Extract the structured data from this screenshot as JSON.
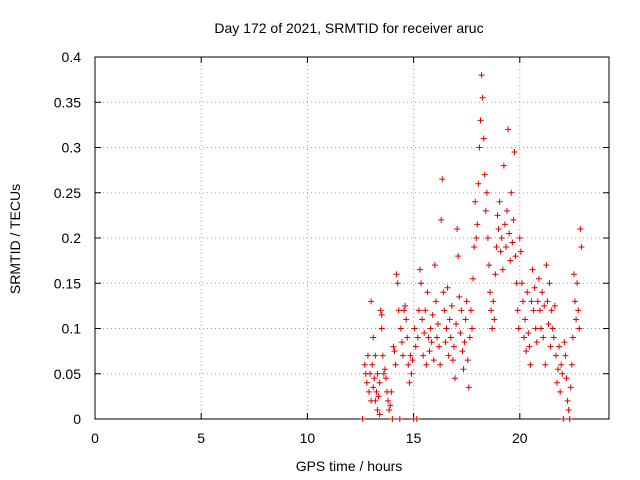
{
  "chart_data": {
    "type": "scatter",
    "title": "Day 172 of 2021, SRMTID for receiver aruc",
    "xlabel": "GPS time / hours",
    "ylabel": "SRMTID / TECUs",
    "xlim": [
      0,
      24.2
    ],
    "ylim": [
      0,
      0.4
    ],
    "x_ticks": [
      "0",
      "5",
      "10",
      "15",
      "20"
    ],
    "x_tick_values": [
      0,
      5,
      10,
      15,
      20
    ],
    "y_ticks": [
      "0",
      "0.05",
      "0.1",
      "0.15",
      "0.2",
      "0.25",
      "0.3",
      "0.35",
      "0.4"
    ],
    "y_tick_values": [
      0,
      0.05,
      0.1,
      0.15,
      0.2,
      0.25,
      0.3,
      0.35,
      0.4
    ],
    "grid": true,
    "marker": "plus",
    "color": "#e00000",
    "series": [
      {
        "name": "SRMTID",
        "points": [
          [
            12.6,
            0.0
          ],
          [
            12.7,
            0.06
          ],
          [
            12.75,
            0.05
          ],
          [
            12.8,
            0.04
          ],
          [
            12.85,
            0.07
          ],
          [
            12.9,
            0.03
          ],
          [
            12.95,
            0.05
          ],
          [
            13.0,
            0.13
          ],
          [
            13.0,
            0.02
          ],
          [
            13.05,
            0.06
          ],
          [
            13.1,
            0.09
          ],
          [
            13.1,
            0.035
          ],
          [
            13.15,
            0.045
          ],
          [
            13.2,
            0.02
          ],
          [
            13.2,
            0.07
          ],
          [
            13.25,
            0.03
          ],
          [
            13.3,
            0.01
          ],
          [
            13.3,
            0.05
          ],
          [
            13.35,
            0.025
          ],
          [
            13.4,
            0.005
          ],
          [
            13.4,
            0.04
          ],
          [
            13.45,
            0.12
          ],
          [
            13.5,
            0.115
          ],
          [
            13.5,
            0.1
          ],
          [
            13.55,
            0.07
          ],
          [
            13.6,
            0.05
          ],
          [
            13.65,
            0.055
          ],
          [
            13.7,
            0.045
          ],
          [
            13.75,
            0.03
          ],
          [
            13.8,
            0.02
          ],
          [
            13.85,
            0.01
          ],
          [
            13.9,
            0.015
          ],
          [
            13.95,
            0.03
          ],
          [
            14.0,
            0.0
          ],
          [
            14.05,
            0.08
          ],
          [
            14.1,
            0.075
          ],
          [
            14.15,
            0.06
          ],
          [
            14.2,
            0.16
          ],
          [
            14.25,
            0.15
          ],
          [
            14.3,
            0.12
          ],
          [
            14.35,
            0.0
          ],
          [
            14.4,
            0.1
          ],
          [
            14.45,
            0.085
          ],
          [
            14.5,
            0.07
          ],
          [
            14.55,
            0.12
          ],
          [
            14.6,
            0.125
          ],
          [
            14.65,
            0.11
          ],
          [
            14.7,
            0.09
          ],
          [
            14.75,
            0.06
          ],
          [
            14.8,
            0.04
          ],
          [
            14.85,
            0.07
          ],
          [
            14.9,
            0.05
          ],
          [
            14.95,
            0.065
          ],
          [
            15.0,
            0.0
          ],
          [
            15.05,
            0.1
          ],
          [
            15.1,
            0.08
          ],
          [
            15.15,
            0.0
          ],
          [
            15.2,
            0.09
          ],
          [
            15.25,
            0.12
          ],
          [
            15.3,
            0.165
          ],
          [
            15.35,
            0.15
          ],
          [
            15.4,
            0.11
          ],
          [
            15.45,
            0.07
          ],
          [
            15.5,
            0.095
          ],
          [
            15.55,
            0.12
          ],
          [
            15.6,
            0.06
          ],
          [
            15.65,
            0.14
          ],
          [
            15.7,
            0.09
          ],
          [
            15.75,
            0.075
          ],
          [
            15.8,
            0.1
          ],
          [
            15.85,
            0.085
          ],
          [
            15.9,
            0.115
          ],
          [
            15.95,
            0.065
          ],
          [
            16.0,
            0.17
          ],
          [
            16.05,
            0.13
          ],
          [
            16.1,
            0.09
          ],
          [
            16.15,
            0.105
          ],
          [
            16.2,
            0.08
          ],
          [
            16.25,
            0.06
          ],
          [
            16.3,
            0.22
          ],
          [
            16.35,
            0.265
          ],
          [
            16.4,
            0.14
          ],
          [
            16.45,
            0.12
          ],
          [
            16.5,
            0.085
          ],
          [
            16.55,
            0.1
          ],
          [
            16.6,
            0.145
          ],
          [
            16.65,
            0.07
          ],
          [
            16.7,
            0.11
          ],
          [
            16.75,
            0.09
          ],
          [
            16.8,
            0.125
          ],
          [
            16.85,
            0.065
          ],
          [
            16.9,
            0.08
          ],
          [
            16.95,
            0.045
          ],
          [
            17.0,
            0.105
          ],
          [
            17.05,
            0.21
          ],
          [
            17.1,
            0.18
          ],
          [
            17.15,
            0.135
          ],
          [
            17.2,
            0.095
          ],
          [
            17.25,
            0.12
          ],
          [
            17.3,
            0.075
          ],
          [
            17.35,
            0.055
          ],
          [
            17.4,
            0.085
          ],
          [
            17.45,
            0.11
          ],
          [
            17.5,
            0.13
          ],
          [
            17.55,
            0.065
          ],
          [
            17.6,
            0.035
          ],
          [
            17.65,
            0.09
          ],
          [
            17.7,
            0.12
          ],
          [
            17.75,
            0.1
          ],
          [
            17.8,
            0.155
          ],
          [
            17.85,
            0.19
          ],
          [
            17.9,
            0.24
          ],
          [
            17.95,
            0.2
          ],
          [
            18.0,
            0.215
          ],
          [
            18.05,
            0.26
          ],
          [
            18.1,
            0.3
          ],
          [
            18.15,
            0.33
          ],
          [
            18.2,
            0.38
          ],
          [
            18.25,
            0.355
          ],
          [
            18.3,
            0.31
          ],
          [
            18.35,
            0.27
          ],
          [
            18.4,
            0.23
          ],
          [
            18.45,
            0.25
          ],
          [
            18.5,
            0.2
          ],
          [
            18.55,
            0.17
          ],
          [
            18.6,
            0.14
          ],
          [
            18.65,
            0.12
          ],
          [
            18.7,
            0.1
          ],
          [
            18.75,
            0.13
          ],
          [
            18.8,
            0.11
          ],
          [
            18.85,
            0.16
          ],
          [
            18.9,
            0.19
          ],
          [
            18.95,
            0.225
          ],
          [
            19.0,
            0.21
          ],
          [
            19.05,
            0.24
          ],
          [
            19.1,
            0.185
          ],
          [
            19.15,
            0.2
          ],
          [
            19.2,
            0.165
          ],
          [
            19.25,
            0.28
          ],
          [
            19.3,
            0.215
          ],
          [
            19.35,
            0.19
          ],
          [
            19.4,
            0.23
          ],
          [
            19.45,
            0.32
          ],
          [
            19.5,
            0.205
          ],
          [
            19.55,
            0.175
          ],
          [
            19.6,
            0.25
          ],
          [
            19.65,
            0.195
          ],
          [
            19.7,
            0.22
          ],
          [
            19.75,
            0.295
          ],
          [
            19.8,
            0.18
          ],
          [
            19.85,
            0.15
          ],
          [
            19.9,
            0.12
          ],
          [
            19.95,
            0.1
          ],
          [
            20.0,
            0.2
          ],
          [
            20.05,
            0.185
          ],
          [
            20.1,
            0.15
          ],
          [
            20.15,
            0.13
          ],
          [
            20.2,
            0.09
          ],
          [
            20.25,
            0.11
          ],
          [
            20.3,
            0.075
          ],
          [
            20.35,
            0.14
          ],
          [
            20.4,
            0.095
          ],
          [
            20.45,
            0.08
          ],
          [
            20.5,
            0.06
          ],
          [
            20.55,
            0.13
          ],
          [
            20.6,
            0.165
          ],
          [
            20.65,
            0.12
          ],
          [
            20.7,
            0.145
          ],
          [
            20.75,
            0.1
          ],
          [
            20.8,
            0.085
          ],
          [
            20.85,
            0.13
          ],
          [
            20.9,
            0.155
          ],
          [
            20.95,
            0.12
          ],
          [
            21.0,
            0.1
          ],
          [
            21.05,
            0.14
          ],
          [
            21.1,
            0.09
          ],
          [
            21.15,
            0.125
          ],
          [
            21.2,
            0.06
          ],
          [
            21.25,
            0.17
          ],
          [
            21.3,
            0.13
          ],
          [
            21.35,
            0.105
          ],
          [
            21.4,
            0.15
          ],
          [
            21.45,
            0.08
          ],
          [
            21.5,
            0.12
          ],
          [
            21.55,
            0.1
          ],
          [
            21.6,
            0.09
          ],
          [
            21.65,
            0.125
          ],
          [
            21.7,
            0.07
          ],
          [
            21.75,
            0.04
          ],
          [
            21.8,
            0.055
          ],
          [
            21.85,
            0.08
          ],
          [
            21.9,
            0.03
          ],
          [
            21.95,
            0.06
          ],
          [
            22.0,
            0.05
          ],
          [
            22.05,
            0.0
          ],
          [
            22.1,
            0.085
          ],
          [
            22.15,
            0.07
          ],
          [
            22.2,
            0.045
          ],
          [
            22.25,
            0.02
          ],
          [
            22.3,
            0.01
          ],
          [
            22.35,
            0.0
          ],
          [
            22.4,
            0.035
          ],
          [
            22.45,
            0.06
          ],
          [
            22.5,
            0.09
          ],
          [
            22.55,
            0.16
          ],
          [
            22.6,
            0.13
          ],
          [
            22.65,
            0.11
          ],
          [
            22.7,
            0.15
          ],
          [
            22.75,
            0.12
          ],
          [
            22.8,
            0.1
          ],
          [
            22.85,
            0.21
          ],
          [
            22.9,
            0.19
          ]
        ]
      }
    ]
  }
}
